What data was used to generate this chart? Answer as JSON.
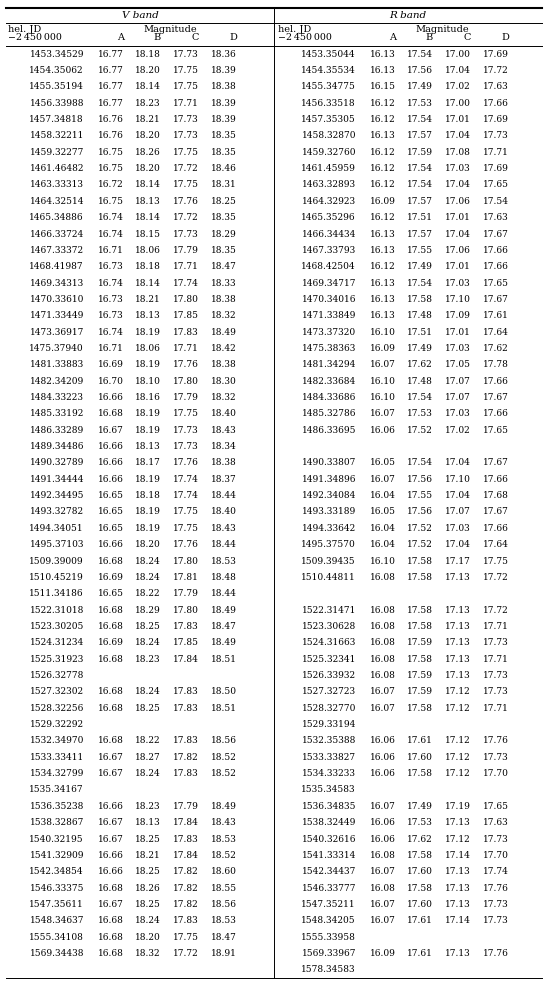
{
  "rows": [
    [
      "1453.34529",
      "16.77",
      "18.18",
      "17.73",
      "18.36",
      "1453.35044",
      "16.13",
      "17.54",
      "17.00",
      "17.69"
    ],
    [
      "1454.35062",
      "16.77",
      "18.20",
      "17.75",
      "18.39",
      "1454.35534",
      "16.13",
      "17.56",
      "17.04",
      "17.72"
    ],
    [
      "1455.35194",
      "16.77",
      "18.14",
      "17.75",
      "18.38",
      "1455.34775",
      "16.15",
      "17.49",
      "17.02",
      "17.63"
    ],
    [
      "1456.33988",
      "16.77",
      "18.23",
      "17.71",
      "18.39",
      "1456.33518",
      "16.12",
      "17.53",
      "17.00",
      "17.66"
    ],
    [
      "1457.34818",
      "16.76",
      "18.21",
      "17.73",
      "18.39",
      "1457.35305",
      "16.12",
      "17.54",
      "17.01",
      "17.69"
    ],
    [
      "1458.32211",
      "16.76",
      "18.20",
      "17.73",
      "18.35",
      "1458.32870",
      "16.13",
      "17.57",
      "17.04",
      "17.73"
    ],
    [
      "1459.32277",
      "16.75",
      "18.26",
      "17.75",
      "18.35",
      "1459.32760",
      "16.12",
      "17.59",
      "17.08",
      "17.71"
    ],
    [
      "1461.46482",
      "16.75",
      "18.20",
      "17.72",
      "18.46",
      "1461.45959",
      "16.12",
      "17.54",
      "17.03",
      "17.69"
    ],
    [
      "1463.33313",
      "16.72",
      "18.14",
      "17.75",
      "18.31",
      "1463.32893",
      "16.12",
      "17.54",
      "17.04",
      "17.65"
    ],
    [
      "1464.32514",
      "16.75",
      "18.13",
      "17.76",
      "18.25",
      "1464.32923",
      "16.09",
      "17.57",
      "17.06",
      "17.54"
    ],
    [
      "1465.34886",
      "16.74",
      "18.14",
      "17.72",
      "18.35",
      "1465.35296",
      "16.12",
      "17.51",
      "17.01",
      "17.63"
    ],
    [
      "1466.33724",
      "16.74",
      "18.15",
      "17.73",
      "18.29",
      "1466.34434",
      "16.13",
      "17.57",
      "17.04",
      "17.67"
    ],
    [
      "1467.33372",
      "16.71",
      "18.06",
      "17.79",
      "18.35",
      "1467.33793",
      "16.13",
      "17.55",
      "17.06",
      "17.66"
    ],
    [
      "1468.41987",
      "16.73",
      "18.18",
      "17.71",
      "18.47",
      "1468.42504",
      "16.12",
      "17.49",
      "17.01",
      "17.66"
    ],
    [
      "1469.34313",
      "16.74",
      "18.14",
      "17.74",
      "18.33",
      "1469.34717",
      "16.13",
      "17.54",
      "17.03",
      "17.65"
    ],
    [
      "1470.33610",
      "16.73",
      "18.21",
      "17.80",
      "18.38",
      "1470.34016",
      "16.13",
      "17.58",
      "17.10",
      "17.67"
    ],
    [
      "1471.33449",
      "16.73",
      "18.13",
      "17.85",
      "18.32",
      "1471.33849",
      "16.13",
      "17.48",
      "17.09",
      "17.61"
    ],
    [
      "1473.36917",
      "16.74",
      "18.19",
      "17.83",
      "18.49",
      "1473.37320",
      "16.10",
      "17.51",
      "17.01",
      "17.64"
    ],
    [
      "1475.37940",
      "16.71",
      "18.06",
      "17.71",
      "18.42",
      "1475.38363",
      "16.09",
      "17.49",
      "17.03",
      "17.62"
    ],
    [
      "1481.33883",
      "16.69",
      "18.19",
      "17.76",
      "18.38",
      "1481.34294",
      "16.07",
      "17.62",
      "17.05",
      "17.78"
    ],
    [
      "1482.34209",
      "16.70",
      "18.10",
      "17.80",
      "18.30",
      "1482.33684",
      "16.10",
      "17.48",
      "17.07",
      "17.66"
    ],
    [
      "1484.33223",
      "16.66",
      "18.16",
      "17.79",
      "18.32",
      "1484.33686",
      "16.10",
      "17.54",
      "17.07",
      "17.67"
    ],
    [
      "1485.33192",
      "16.68",
      "18.19",
      "17.75",
      "18.40",
      "1485.32786",
      "16.07",
      "17.53",
      "17.03",
      "17.66"
    ],
    [
      "1486.33289",
      "16.67",
      "18.19",
      "17.73",
      "18.43",
      "1486.33695",
      "16.06",
      "17.52",
      "17.02",
      "17.65"
    ],
    [
      "1489.34486",
      "16.66",
      "18.13",
      "17.73",
      "18.34",
      "",
      "",
      "",
      "",
      ""
    ],
    [
      "1490.32789",
      "16.66",
      "18.17",
      "17.76",
      "18.38",
      "1490.33807",
      "16.05",
      "17.54",
      "17.04",
      "17.67"
    ],
    [
      "1491.34444",
      "16.66",
      "18.19",
      "17.74",
      "18.37",
      "1491.34896",
      "16.07",
      "17.56",
      "17.10",
      "17.66"
    ],
    [
      "1492.34495",
      "16.65",
      "18.18",
      "17.74",
      "18.44",
      "1492.34084",
      "16.04",
      "17.55",
      "17.04",
      "17.68"
    ],
    [
      "1493.32782",
      "16.65",
      "18.19",
      "17.75",
      "18.40",
      "1493.33189",
      "16.05",
      "17.56",
      "17.07",
      "17.67"
    ],
    [
      "1494.34051",
      "16.65",
      "18.19",
      "17.75",
      "18.43",
      "1494.33642",
      "16.04",
      "17.52",
      "17.03",
      "17.66"
    ],
    [
      "1495.37103",
      "16.66",
      "18.20",
      "17.76",
      "18.44",
      "1495.37570",
      "16.04",
      "17.52",
      "17.04",
      "17.64"
    ],
    [
      "1509.39009",
      "16.68",
      "18.24",
      "17.80",
      "18.53",
      "1509.39435",
      "16.10",
      "17.58",
      "17.17",
      "17.75"
    ],
    [
      "1510.45219",
      "16.69",
      "18.24",
      "17.81",
      "18.48",
      "1510.44811",
      "16.08",
      "17.58",
      "17.13",
      "17.72"
    ],
    [
      "1511.34186",
      "16.65",
      "18.22",
      "17.79",
      "18.44",
      "",
      "",
      "",
      "",
      ""
    ],
    [
      "1522.31018",
      "16.68",
      "18.29",
      "17.80",
      "18.49",
      "1522.31471",
      "16.08",
      "17.58",
      "17.13",
      "17.72"
    ],
    [
      "1523.30205",
      "16.68",
      "18.25",
      "17.83",
      "18.47",
      "1523.30628",
      "16.08",
      "17.58",
      "17.13",
      "17.71"
    ],
    [
      "1524.31234",
      "16.69",
      "18.24",
      "17.85",
      "18.49",
      "1524.31663",
      "16.08",
      "17.59",
      "17.13",
      "17.73"
    ],
    [
      "1525.31923",
      "16.68",
      "18.23",
      "17.84",
      "18.51",
      "1525.32341",
      "16.08",
      "17.58",
      "17.13",
      "17.71"
    ],
    [
      "1526.32778",
      "",
      "",
      "",
      "",
      "1526.33932",
      "16.08",
      "17.59",
      "17.13",
      "17.73"
    ],
    [
      "1527.32302",
      "16.68",
      "18.24",
      "17.83",
      "18.50",
      "1527.32723",
      "16.07",
      "17.59",
      "17.12",
      "17.73"
    ],
    [
      "1528.32256",
      "16.68",
      "18.25",
      "17.83",
      "18.51",
      "1528.32770",
      "16.07",
      "17.58",
      "17.12",
      "17.71"
    ],
    [
      "1529.32292",
      "",
      "",
      "",
      "",
      "1529.33194",
      "",
      "",
      "",
      ""
    ],
    [
      "1532.34970",
      "16.68",
      "18.22",
      "17.83",
      "18.56",
      "1532.35388",
      "16.06",
      "17.61",
      "17.12",
      "17.76"
    ],
    [
      "1533.33411",
      "16.67",
      "18.27",
      "17.82",
      "18.52",
      "1533.33827",
      "16.06",
      "17.60",
      "17.12",
      "17.73"
    ],
    [
      "1534.32799",
      "16.67",
      "18.24",
      "17.83",
      "18.52",
      "1534.33233",
      "16.06",
      "17.58",
      "17.12",
      "17.70"
    ],
    [
      "1535.34167",
      "",
      "",
      "",
      "",
      "1535.34583",
      "",
      "",
      "",
      ""
    ],
    [
      "1536.35238",
      "16.66",
      "18.23",
      "17.79",
      "18.49",
      "1536.34835",
      "16.07",
      "17.49",
      "17.19",
      "17.65"
    ],
    [
      "1538.32867",
      "16.67",
      "18.13",
      "17.84",
      "18.43",
      "1538.32449",
      "16.06",
      "17.53",
      "17.13",
      "17.63"
    ],
    [
      "1540.32195",
      "16.67",
      "18.25",
      "17.83",
      "18.53",
      "1540.32616",
      "16.06",
      "17.62",
      "17.12",
      "17.73"
    ],
    [
      "1541.32909",
      "16.66",
      "18.21",
      "17.84",
      "18.52",
      "1541.33314",
      "16.08",
      "17.58",
      "17.14",
      "17.70"
    ],
    [
      "1542.34854",
      "16.66",
      "18.25",
      "17.82",
      "18.60",
      "1542.34437",
      "16.07",
      "17.60",
      "17.13",
      "17.74"
    ],
    [
      "1546.33375",
      "16.68",
      "18.26",
      "17.82",
      "18.55",
      "1546.33777",
      "16.08",
      "17.58",
      "17.13",
      "17.76"
    ],
    [
      "1547.35611",
      "16.67",
      "18.25",
      "17.82",
      "18.56",
      "1547.35211",
      "16.07",
      "17.60",
      "17.13",
      "17.73"
    ],
    [
      "1548.34637",
      "16.68",
      "18.24",
      "17.83",
      "18.53",
      "1548.34205",
      "16.07",
      "17.61",
      "17.14",
      "17.73"
    ],
    [
      "1555.34108",
      "16.68",
      "18.20",
      "17.75",
      "18.47",
      "1555.33958",
      "",
      "",
      "",
      ""
    ],
    [
      "1569.34438",
      "16.68",
      "18.32",
      "17.72",
      "18.91",
      "1569.33967",
      "16.09",
      "17.61",
      "17.13",
      "17.76"
    ],
    [
      "",
      "",
      "",
      "",
      "",
      "1578.34583",
      "",
      "",
      "",
      ""
    ]
  ],
  "figw": 5.48,
  "figh": 9.83,
  "dpi": 100
}
